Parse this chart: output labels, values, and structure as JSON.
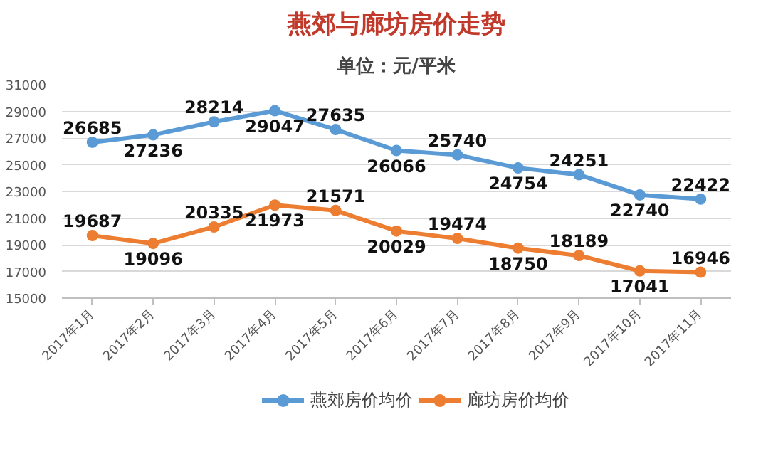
{
  "chart_data": {
    "type": "line",
    "title": "燕郊与廊坊房价走势",
    "subtitle": "单位：元/平米",
    "categories": [
      "2017年1月",
      "2017年2月",
      "2017年3月",
      "2017年4月",
      "2017年5月",
      "2017年6月",
      "2017年7月",
      "2017年8月",
      "2017年9月",
      "2017年10月",
      "2017年11月"
    ],
    "series": [
      {
        "name": "燕郊房价均价",
        "color": "#5b9bd5",
        "values": [
          26685,
          27236,
          28214,
          29047,
          27635,
          26066,
          25740,
          24754,
          24251,
          22740,
          22422
        ]
      },
      {
        "name": "廊坊房价均价",
        "color": "#ed7d31",
        "values": [
          19687,
          19096,
          20335,
          21973,
          21571,
          20029,
          19474,
          18750,
          18189,
          17041,
          16946
        ]
      }
    ],
    "ylim": [
      15000,
      31000
    ],
    "yticks": [
      15000,
      17000,
      19000,
      21000,
      23000,
      25000,
      27000,
      29000,
      31000
    ],
    "grid": "y",
    "legend": "bottom",
    "marker": "circle",
    "line_style": "solid",
    "data_labels": true
  }
}
